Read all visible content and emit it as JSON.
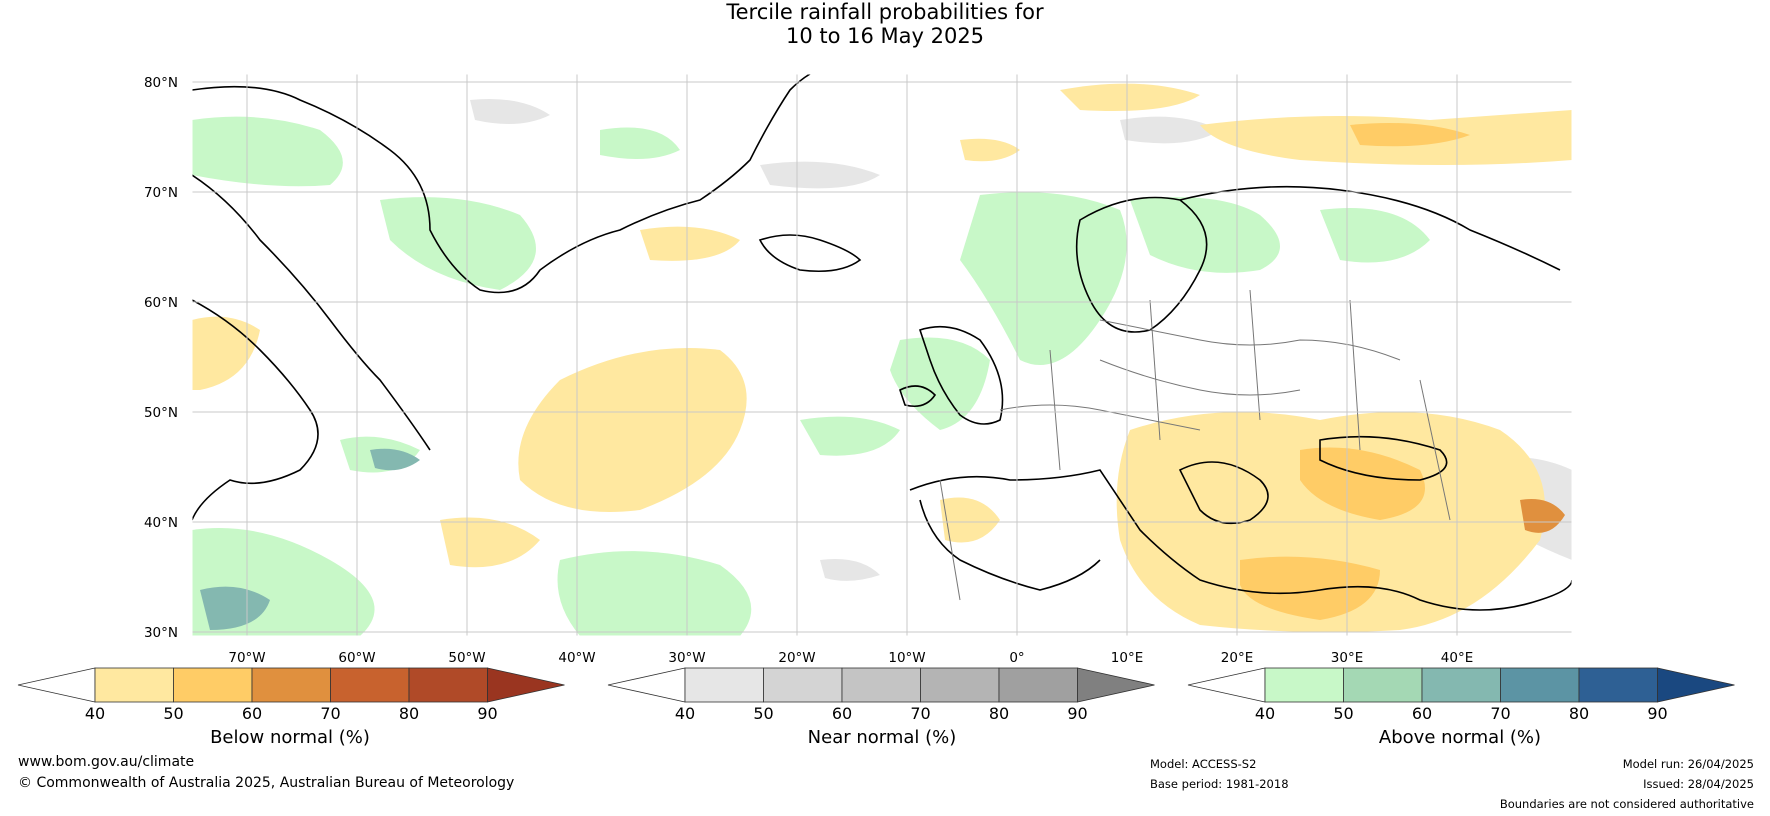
{
  "title_line1": "Tercile rainfall probabilities for",
  "title_line2": "10 to 16 May 2025",
  "map": {
    "lat_labels": [
      "80°N",
      "70°N",
      "60°N",
      "50°N",
      "40°N",
      "30°N"
    ],
    "lon_labels": [
      "70°W",
      "60°W",
      "50°W",
      "40°W",
      "30°W",
      "20°W",
      "10°W",
      "0°",
      "10°E",
      "20°E",
      "30°E",
      "40°E"
    ],
    "land_color": "#ffffff",
    "grid_color": "#c8c8c8"
  },
  "colorbars": [
    {
      "label": "Below normal (%)",
      "ticks": [
        "40",
        "50",
        "60",
        "70",
        "80",
        "90"
      ],
      "colors": [
        "#ffffff",
        "#ffe8a0",
        "#ffcc66",
        "#e0903e",
        "#c8622e",
        "#b04a28",
        "#9a3520"
      ]
    },
    {
      "label": "Near normal (%)",
      "ticks": [
        "40",
        "50",
        "60",
        "70",
        "80",
        "90"
      ],
      "colors": [
        "#ffffff",
        "#e6e6e6",
        "#d4d4d4",
        "#c4c4c4",
        "#b4b4b4",
        "#a0a0a0",
        "#808080"
      ]
    },
    {
      "label": "Above normal (%)",
      "ticks": [
        "40",
        "50",
        "60",
        "70",
        "80",
        "90"
      ],
      "colors": [
        "#ffffff",
        "#c8f8c8",
        "#a4d8b4",
        "#84b8b0",
        "#5c94a4",
        "#2e6094",
        "#1a4880"
      ]
    }
  ],
  "footer": {
    "website": "www.bom.gov.au/climate",
    "copyright": "© Commonwealth of Australia 2025, Australian Bureau of Meteorology",
    "model": "Model: ACCESS-S2",
    "base_period": "Base period: 1981-2018",
    "model_run": "Model run: 26/04/2025",
    "issued": "Issued: 28/04/2025",
    "disclaimer": "Boundaries are not considered authoritative"
  }
}
